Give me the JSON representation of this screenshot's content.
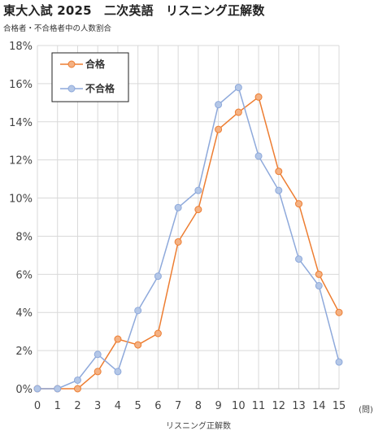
{
  "header": {
    "title": "東大入試 2025　二次英語　リスニング正解数",
    "subtitle": "合格者・不合格者中の人数割合"
  },
  "chart_data": {
    "type": "line",
    "title": "東大入試 2025　二次英語　リスニング正解数",
    "subtitle": "合格者・不合格者中の人数割合",
    "xlabel": "リスニング正解数",
    "x_unit": "(問)",
    "ylabel": "",
    "x": [
      0,
      1,
      2,
      3,
      4,
      5,
      6,
      7,
      8,
      9,
      10,
      11,
      12,
      13,
      14,
      15
    ],
    "xlim": [
      0,
      15
    ],
    "ylim": [
      0,
      18
    ],
    "y_ticks": [
      "0%",
      "2%",
      "4%",
      "6%",
      "8%",
      "10%",
      "12%",
      "14%",
      "16%",
      "18%"
    ],
    "y_format": "percent",
    "grid": true,
    "legend_position": "top-left",
    "series": [
      {
        "name": "合格",
        "color": "#ED7D31",
        "values": [
          0,
          0,
          0,
          0.9,
          2.6,
          2.3,
          2.9,
          7.7,
          9.4,
          13.6,
          14.5,
          15.3,
          11.4,
          9.7,
          6.0,
          4.0
        ]
      },
      {
        "name": "不合格",
        "color": "#8EA9DB",
        "values": [
          0,
          0,
          0.45,
          1.8,
          0.9,
          4.1,
          5.9,
          9.5,
          10.4,
          14.9,
          15.8,
          12.2,
          10.4,
          6.8,
          5.4,
          1.4
        ]
      }
    ]
  }
}
